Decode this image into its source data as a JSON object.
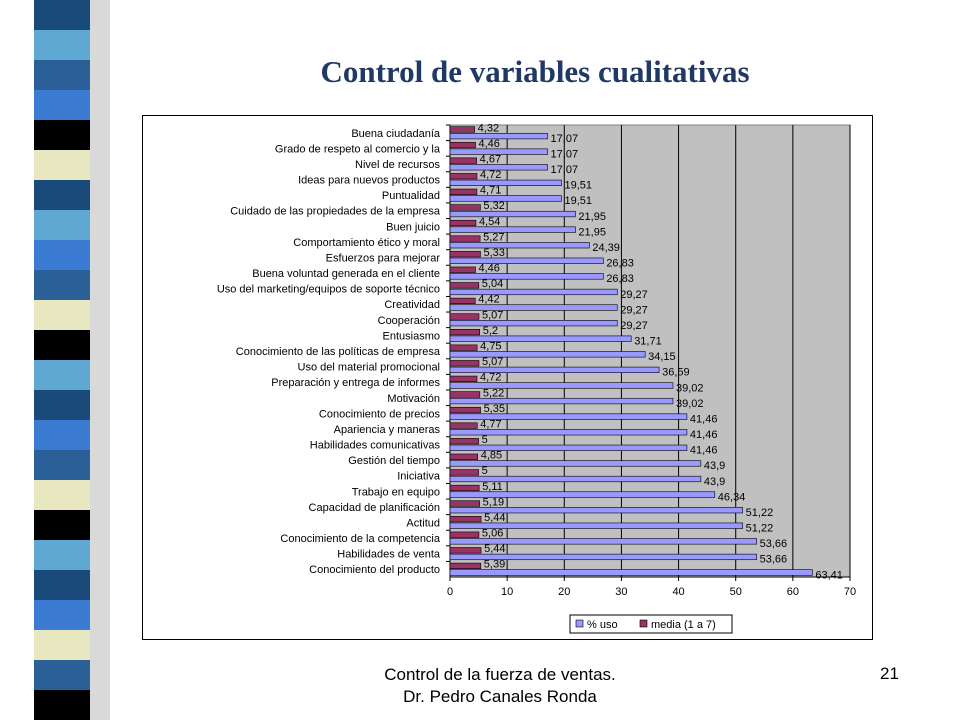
{
  "slide": {
    "title": "Control de variables cualitativas",
    "footer_line1": "Control de la fuerza de ventas.",
    "footer_line2": "Dr. Pedro Canales Ronda",
    "page_number": "21"
  },
  "stripe_colors": [
    "#1a4a7a",
    "#5fa8d3",
    "#2a5f98",
    "#3b7bd1",
    "#000000",
    "#e8e8c0",
    "#1a4a7a",
    "#5fa8d3",
    "#3b7bd1",
    "#2a5f98",
    "#e8e8c0",
    "#000000",
    "#5fa8d3",
    "#1a4a7a",
    "#3b7bd1",
    "#2a5f98",
    "#e8e8c0",
    "#000000",
    "#5fa8d3",
    "#1a4a7a",
    "#3b7bd1",
    "#e8e8c0",
    "#2a5f98",
    "#000000"
  ],
  "chart_data": {
    "type": "bar",
    "orientation": "horizontal",
    "categories": [
      "Buena ciudadanía",
      "Grado de respeto al comercio y la",
      "Nivel de recursos",
      "Ideas para nuevos productos",
      "Puntualidad",
      "Cuidado de las propiedades de la empresa",
      "Buen juicio",
      "Comportamiento ético y moral",
      "Esfuerzos para mejorar",
      "Buena voluntad generada en el cliente",
      "Uso del marketing/equipos de soporte técnico",
      "Creatividad",
      "Cooperación",
      "Entusiasmo",
      "Conocimiento de las políticas de empresa",
      "Uso del material promocional",
      "Preparación y entrega de informes",
      "Motivación",
      "Conocimiento de precios",
      "Apariencia y maneras",
      "Habilidades comunicativas",
      "Gestión del tiempo",
      "Iniciativa",
      "Trabajo en equipo",
      "Capacidad de planificación",
      "Actitud",
      "Conocimiento de la competencia",
      "Habilidades de venta",
      "Conocimiento del producto"
    ],
    "series": [
      {
        "name": "% uso",
        "color": "#9999ff",
        "values": [
          17.07,
          17.07,
          17.07,
          19.51,
          19.51,
          21.95,
          21.95,
          24.39,
          26.83,
          26.83,
          29.27,
          29.27,
          29.27,
          31.71,
          34.15,
          36.59,
          39.02,
          39.02,
          41.46,
          41.46,
          41.46,
          43.9,
          43.9,
          46.34,
          51.22,
          51.22,
          53.66,
          53.66,
          63.41
        ],
        "labels": [
          "17,07",
          "17,07",
          "17,07",
          "19,51",
          "19,51",
          "21,95",
          "21,95",
          "24,39",
          "26,83",
          "26,83",
          "29,27",
          "29,27",
          "29,27",
          "31,71",
          "34,15",
          "36,59",
          "39,02",
          "39,02",
          "41,46",
          "41,46",
          "41,46",
          "43,9",
          "43,9",
          "46,34",
          "51,22",
          "51,22",
          "53,66",
          "53,66",
          "63,41"
        ]
      },
      {
        "name": "media (1 a 7)",
        "color": "#993366",
        "values": [
          4.32,
          4.46,
          4.67,
          4.72,
          4.71,
          5.32,
          4.54,
          5.27,
          5.33,
          4.46,
          5.04,
          4.42,
          5.07,
          5.2,
          4.75,
          5.07,
          4.72,
          5.22,
          5.35,
          4.77,
          5,
          4.85,
          5,
          5.11,
          5.19,
          5.44,
          5.06,
          5.44,
          5.39
        ],
        "labels": [
          "4,32",
          "4,46",
          "4,67",
          "4,72",
          "4,71",
          "5,32",
          "4,54",
          "5,27",
          "5,33",
          "4,46",
          "5,04",
          "4,42",
          "5,07",
          "5,2",
          "4,75",
          "5,07",
          "4,72",
          "5,22",
          "5,35",
          "4,77",
          "5",
          "4,85",
          "5",
          "5,11",
          "5,19",
          "5,44",
          "5,06",
          "5,44",
          "5,39"
        ]
      }
    ],
    "xlim": [
      0,
      70
    ],
    "xticks": [
      "0",
      "10",
      "20",
      "30",
      "40",
      "50",
      "60",
      "70"
    ],
    "grid": true,
    "legend_position": "bottom-right",
    "plot_background": "#c0c0c0"
  }
}
